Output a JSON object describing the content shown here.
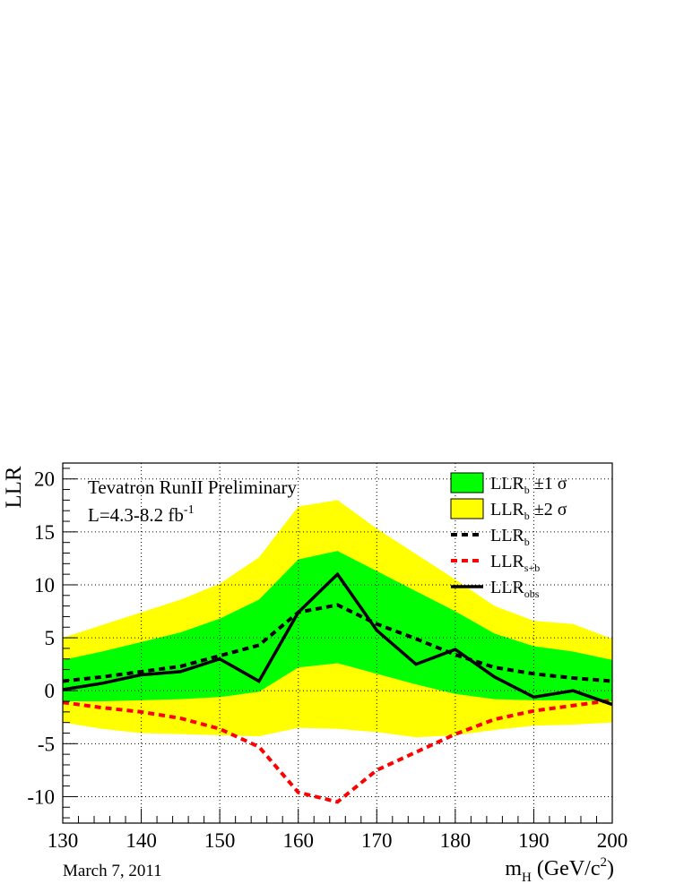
{
  "chart_data": {
    "type": "line",
    "title": "",
    "ylabel": "LLR",
    "xlabel": "m",
    "xlabel_sub": "H",
    "xlabel_unit": " (GeV/c",
    "xlabel_unit_sup": "2",
    "xlabel_unit_close": ")",
    "xlim": [
      130,
      200
    ],
    "ylim": [
      -12.5,
      21.5
    ],
    "xticks": [
      130,
      140,
      150,
      160,
      170,
      180,
      190,
      200
    ],
    "yticks": [
      -10,
      -5,
      0,
      5,
      10,
      15,
      20
    ],
    "grid": true,
    "x": [
      130,
      135,
      140,
      145,
      150,
      155,
      160,
      165,
      170,
      175,
      180,
      185,
      190,
      195,
      200
    ],
    "bands": [
      {
        "legend_label": "LLR",
        "legend_sub": "b",
        "legend_suffix": "  ±2 σ",
        "color": "#ffff00",
        "upper": [
          5.0,
          6.2,
          7.4,
          8.6,
          10.1,
          12.6,
          17.4,
          18.0,
          15.3,
          12.9,
          10.5,
          8.0,
          6.6,
          6.3,
          4.9
        ],
        "lower": [
          -3.0,
          -3.6,
          -4.0,
          -4.1,
          -4.2,
          -4.3,
          -3.5,
          -3.6,
          -3.9,
          -4.4,
          -4.2,
          -3.7,
          -3.3,
          -3.2,
          -3.0
        ]
      },
      {
        "legend_label": "LLR",
        "legend_sub": "b",
        "legend_suffix": "  ±1 σ",
        "color": "#00ff00",
        "upper": [
          2.9,
          3.7,
          4.6,
          5.5,
          6.8,
          8.6,
          12.4,
          13.2,
          11.3,
          9.4,
          7.5,
          5.4,
          4.2,
          3.7,
          2.9
        ],
        "lower": [
          -1.0,
          -1.0,
          -0.9,
          -0.8,
          -0.6,
          -0.1,
          2.2,
          2.6,
          1.6,
          0.6,
          -0.3,
          -0.8,
          -0.9,
          -0.9,
          -1.0
        ]
      }
    ],
    "series": [
      {
        "legend_label": "LLR",
        "legend_sub": "b",
        "color": "#000000",
        "dash": "7,5",
        "width": 4,
        "values": [
          0.9,
          1.3,
          1.8,
          2.3,
          3.3,
          4.3,
          7.4,
          8.1,
          6.3,
          4.9,
          3.4,
          2.2,
          1.6,
          1.2,
          0.9
        ]
      },
      {
        "legend_label": "LLR",
        "legend_sub": "s+b",
        "color": "#ff0000",
        "dash": "7,5",
        "width": 4,
        "values": [
          -1.1,
          -1.6,
          -2.0,
          -2.6,
          -3.6,
          -5.3,
          -9.6,
          -10.5,
          -7.5,
          -5.8,
          -4.1,
          -2.7,
          -1.9,
          -1.4,
          -0.9
        ]
      },
      {
        "legend_label": "LLR",
        "legend_sub": "obs",
        "color": "#000000",
        "dash": "",
        "width": 3.5,
        "values": [
          0.1,
          0.7,
          1.5,
          1.8,
          3.0,
          0.9,
          7.4,
          11.0,
          5.7,
          2.5,
          3.9,
          1.3,
          -0.6,
          0.0,
          -1.3
        ]
      }
    ],
    "legend_placement": "top-right",
    "annotations": {
      "experiment": "Tevatron RunII Preliminary",
      "lumi_prefix": "L=4.3-8.2 fb",
      "lumi_sup": "-1",
      "date": "March 7, 2011"
    }
  }
}
